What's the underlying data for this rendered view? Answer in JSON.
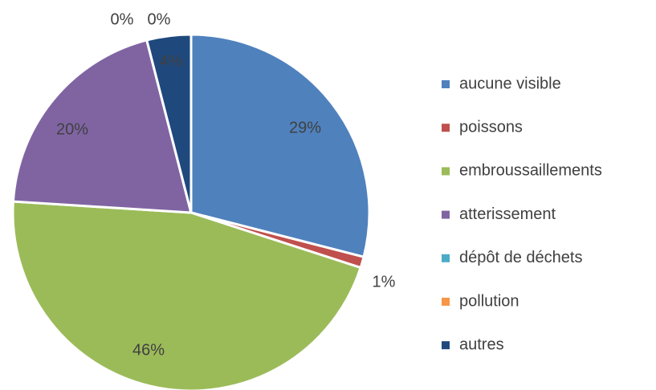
{
  "chart_data": {
    "type": "pie",
    "categories": [
      "aucune visible",
      "poissons",
      "embroussaillements",
      "atterissement",
      "dépôt de déchets",
      "pollution",
      "autres"
    ],
    "values": [
      29,
      1,
      46,
      20,
      0,
      0,
      4
    ],
    "value_labels": [
      "29%",
      "1%",
      "46%",
      "20%",
      "0%",
      "0%",
      "4%"
    ],
    "colors": [
      "#4f81bd",
      "#c0504d",
      "#9bbb59",
      "#8064a2",
      "#4bacc6",
      "#f79646",
      "#1f497d"
    ],
    "legend": "right"
  }
}
